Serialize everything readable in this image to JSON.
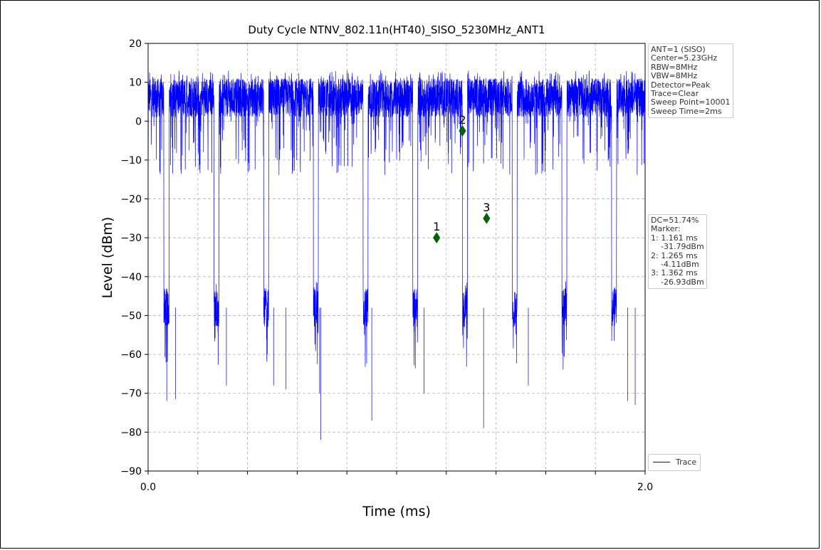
{
  "chart_data": {
    "type": "line",
    "title": "Duty Cycle NTNV_802.11n(HT40)_SISO_5230MHz_ANT1",
    "xlabel": "Time (ms)",
    "ylabel": "Level (dBm)",
    "xlim": [
      0.0,
      2.0
    ],
    "ylim": [
      -90,
      20
    ],
    "x_tick_labels": [
      "0.0",
      "2.0"
    ],
    "x_minor_ticks": [
      0.2,
      0.4,
      0.6,
      0.8,
      1.0,
      1.2,
      1.4,
      1.6,
      1.8
    ],
    "y_ticks": [
      20,
      10,
      0,
      -10,
      -20,
      -30,
      -40,
      -50,
      -60,
      -70,
      -80,
      -90
    ],
    "grid": true,
    "series": [
      {
        "name": "Trace",
        "color": "#0000ff",
        "high_level_dbm": 6,
        "low_level_dbm": -48,
        "high_segments_ms": [
          [
            0.0,
            0.063
          ],
          [
            0.085,
            0.265
          ],
          [
            0.285,
            0.465
          ],
          [
            0.485,
            0.665
          ],
          [
            0.685,
            0.865
          ],
          [
            0.885,
            1.065
          ],
          [
            1.085,
            1.265
          ],
          [
            1.285,
            1.465
          ],
          [
            1.485,
            1.665
          ],
          [
            1.685,
            1.865
          ],
          [
            1.885,
            2.0
          ]
        ],
        "deep_dips": [
          [
            0.075,
            -72
          ],
          [
            0.11,
            -71.5
          ],
          [
            0.315,
            -68
          ],
          [
            0.505,
            -68
          ],
          [
            0.555,
            -69
          ],
          [
            0.69,
            -70
          ],
          [
            0.695,
            -82
          ],
          [
            0.9,
            -77
          ],
          [
            1.11,
            -70
          ],
          [
            1.35,
            -79
          ],
          [
            1.53,
            -68
          ],
          [
            1.93,
            -72
          ],
          [
            1.96,
            -73
          ]
        ]
      }
    ],
    "markers": [
      {
        "label": "1",
        "x": 1.161,
        "y": -30
      },
      {
        "label": "2",
        "x": 1.265,
        "y": -2.5
      },
      {
        "label": "3",
        "x": 1.362,
        "y": -25
      }
    ],
    "marker_color": "#006400",
    "legend_position": "lower-right outside"
  },
  "info_box": {
    "settings": "ANT=1 (SISO)\nCenter=5.23GHz\nRBW=8MHz\nVBW=8MHz\nDetector=Peak\nTrace=Clear\nSweep Point=10001\nSweep Time=2ms",
    "dc_markers": "DC=51.74%\nMarker:\n1: 1.161 ms\n    -31.79dBm\n2: 1.265 ms\n    -4.11dBm\n3: 1.362 ms\n    -26.93dBm"
  },
  "legend": {
    "label": "Trace"
  }
}
